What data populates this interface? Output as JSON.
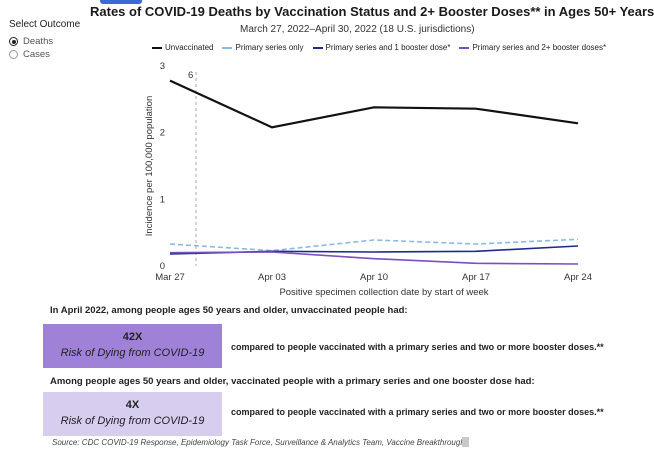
{
  "title": "Rates of COVID-19 Deaths by Vaccination Status and 2+ Booster Doses** in Ages 50+ Years",
  "subtitle": "March 27, 2022–April 30, 2022 (18 U.S. jurisdictions)",
  "outcome_selector": {
    "label": "Select Outcome",
    "options": [
      {
        "label": "Deaths",
        "selected": true
      },
      {
        "label": "Cases",
        "selected": false
      }
    ]
  },
  "chart_data": {
    "type": "line",
    "title": "Rates of COVID-19 Deaths by Vaccination Status and 2+ Booster Doses** in Ages 50+ Years",
    "subtitle": "March 27, 2022–April 30, 2022 (18 U.S. jurisdictions)",
    "xlabel": "Positive specimen collection date by start of week",
    "ylabel": "Incidence per 100,000 population",
    "x": [
      "Mar 27",
      "Apr 03",
      "Apr 10",
      "Apr 17",
      "Apr 24"
    ],
    "ylim": [
      0,
      3
    ],
    "yticks": [
      0,
      1,
      2,
      3
    ],
    "grid": false,
    "legend_position": "top",
    "series": [
      {
        "name": "Unvaccinated",
        "values": [
          2.78,
          2.08,
          2.38,
          2.36,
          2.14
        ],
        "color": "#111111",
        "dashed": false
      },
      {
        "name": "Primary series only",
        "values": [
          0.33,
          0.23,
          0.39,
          0.33,
          0.4
        ],
        "color": "#8db8e3",
        "dashed": true
      },
      {
        "name": "Primary series and 1 booster dose*",
        "values": [
          0.18,
          0.22,
          0.21,
          0.22,
          0.3
        ],
        "color": "#1f2a8c",
        "dashed": false
      },
      {
        "name": "Primary series and 2+ booster doses*",
        "values": [
          0.2,
          0.21,
          0.11,
          0.04,
          0.03
        ],
        "color": "#7b4fbf",
        "dashed": false
      }
    ],
    "annotations": [
      {
        "label": "6",
        "x": "Mar 27"
      }
    ]
  },
  "stats": [
    {
      "heading": "In April 2022, among people ages 50 years and older, unvaccinated people had:",
      "value": "42X",
      "risk": "Risk of Dying from COVID-19",
      "compare": "compared to people vaccinated with a primary series and two or more booster doses.**",
      "color": "#9f82d8"
    },
    {
      "heading": "Among people ages 50 years and older, vaccinated people with a primary series and one booster dose had:",
      "value": "4X",
      "risk": "Risk of Dying from COVID-19",
      "compare": "compared to people vaccinated with a primary series and two or more booster doses.**",
      "color": "#d6cdef"
    }
  ],
  "source": "Source: CDC COVID-19 Response, Epidemiology Task Force, Surveillance & Analytics Team, Vaccine Breakthrough"
}
